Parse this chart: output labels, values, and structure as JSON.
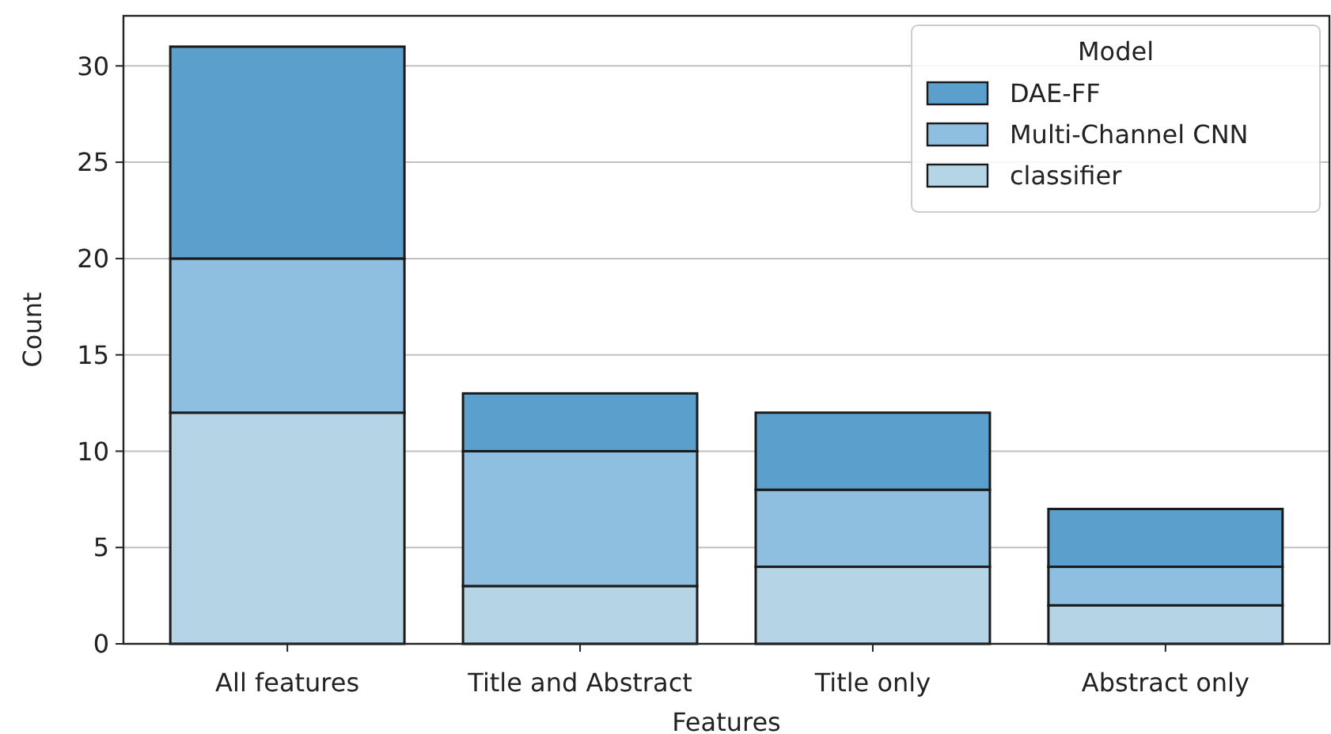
{
  "chart_data": {
    "type": "bar",
    "stacked": true,
    "xlabel": "Features",
    "ylabel": "Count",
    "legend_title": "Model",
    "legend": "top right",
    "grid": "y",
    "categories": [
      "All features",
      "Title and Abstract",
      "Title only",
      "Abstract only"
    ],
    "series": [
      {
        "name": "classifier",
        "color": "#b5d4e6",
        "values": [
          12,
          3,
          4,
          2
        ]
      },
      {
        "name": "Multi-Channel CNN",
        "color": "#8fbfe0",
        "values": [
          8,
          7,
          4,
          2
        ]
      },
      {
        "name": "DAE-FF",
        "color": "#5b9fcd",
        "values": [
          11,
          3,
          4,
          3
        ]
      }
    ],
    "ylim": [
      0,
      32.6
    ],
    "yticks": [
      0,
      5,
      10,
      15,
      20,
      25,
      30
    ]
  }
}
